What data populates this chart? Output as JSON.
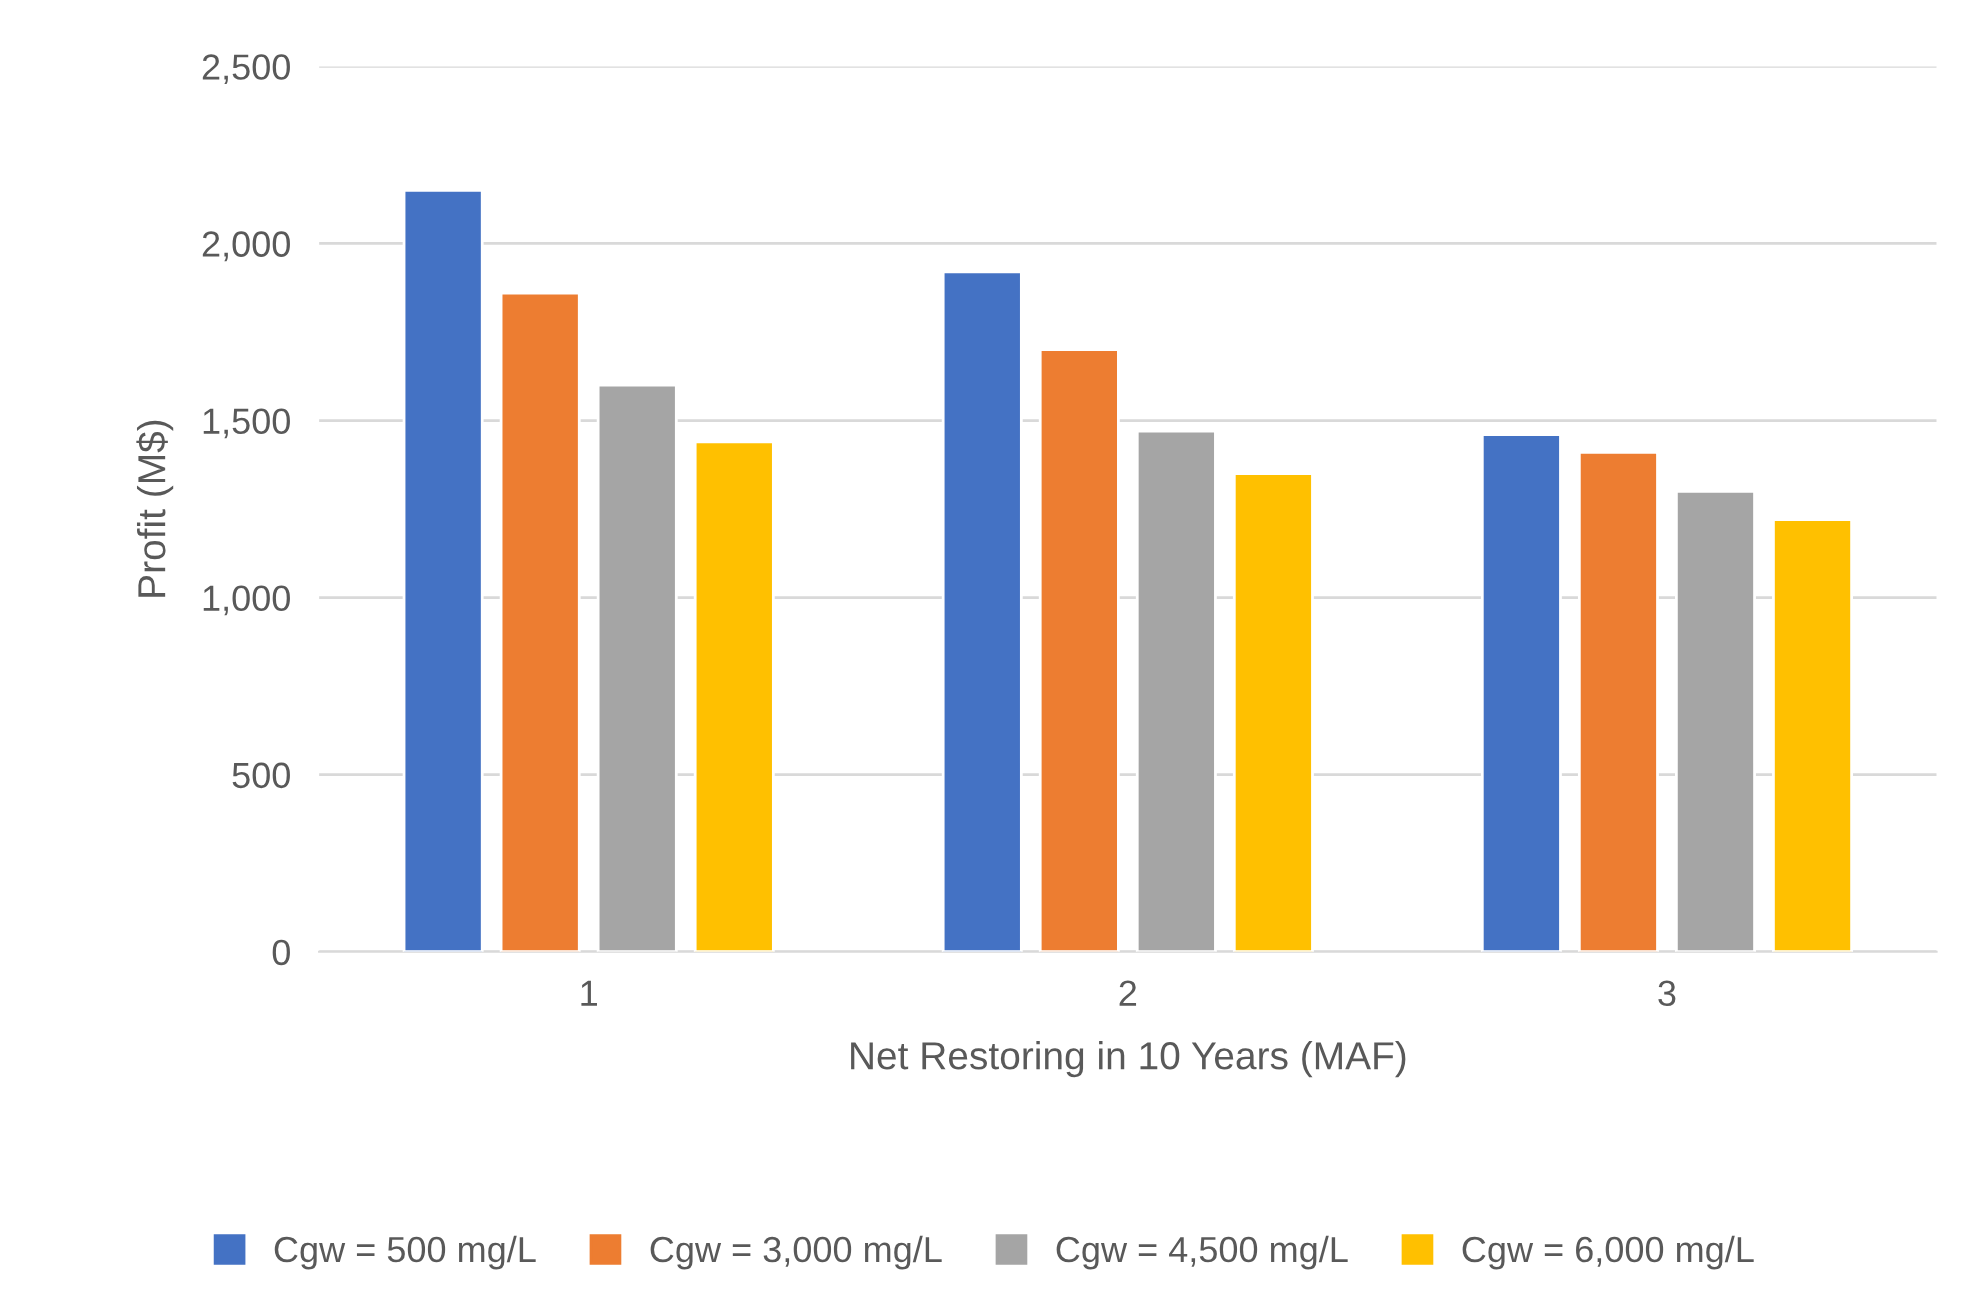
{
  "chart_data": {
    "type": "bar",
    "xlabel": "Net Restoring in 10 Years (MAF)",
    "ylabel": "Profit (M$)",
    "categories": [
      "1",
      "2",
      "3"
    ],
    "series": [
      {
        "name": "Cgw = 500 mg/L",
        "color": "#4472c4",
        "values": [
          2150,
          1920,
          1460
        ]
      },
      {
        "name": "Cgw = 3,000 mg/L",
        "color": "#ed7d31",
        "values": [
          1860,
          1700,
          1410
        ]
      },
      {
        "name": "Cgw = 4,500 mg/L",
        "color": "#a5a5a5",
        "values": [
          1600,
          1470,
          1300
        ]
      },
      {
        "name": "Cgw = 6,000 mg/L",
        "color": "#ffc000",
        "values": [
          1440,
          1350,
          1220
        ]
      }
    ],
    "ylim": [
      0,
      2500
    ],
    "yticks": [
      {
        "value": 0,
        "label": "0"
      },
      {
        "value": 500,
        "label": "500"
      },
      {
        "value": 1000,
        "label": "1,000"
      },
      {
        "value": 1500,
        "label": "1,500"
      },
      {
        "value": 2000,
        "label": "2,000"
      },
      {
        "value": 2500,
        "label": "2,500"
      }
    ],
    "grid": "y",
    "legend": "bottom"
  }
}
